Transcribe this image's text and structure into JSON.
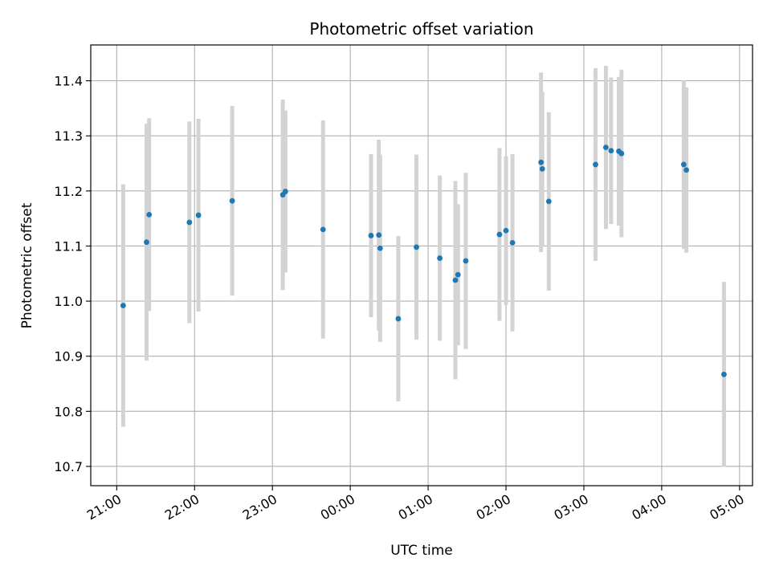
{
  "chart_data": {
    "type": "scatter",
    "title": "Photometric offset variation",
    "xlabel": "UTC time",
    "ylabel": "Photometric offset",
    "grid": true,
    "error_bar_color": "#d3d3d3",
    "point_color": "#1f77b4",
    "xlim": [
      "20:40",
      "05:10"
    ],
    "ylim": [
      10.665,
      11.465
    ],
    "x_ticks": [
      "21:00",
      "22:00",
      "23:00",
      "00:00",
      "01:00",
      "02:00",
      "03:00",
      "04:00",
      "05:00"
    ],
    "y_ticks": [
      "10.7",
      "10.8",
      "10.9",
      "11.0",
      "11.1",
      "11.2",
      "11.3",
      "11.4"
    ],
    "points": [
      {
        "x": "21:05",
        "y": 10.992,
        "err": 0.22
      },
      {
        "x": "21:23",
        "y": 11.107,
        "err": 0.215
      },
      {
        "x": "21:25",
        "y": 11.157,
        "err": 0.175
      },
      {
        "x": "21:56",
        "y": 11.143,
        "err": 0.183
      },
      {
        "x": "22:03",
        "y": 11.156,
        "err": 0.175
      },
      {
        "x": "22:29",
        "y": 11.182,
        "err": 0.172
      },
      {
        "x": "23:08",
        "y": 11.193,
        "err": 0.173
      },
      {
        "x": "23:10",
        "y": 11.199,
        "err": 0.147
      },
      {
        "x": "23:39",
        "y": 11.13,
        "err": 0.198
      },
      {
        "x": "00:16",
        "y": 11.119,
        "err": 0.148
      },
      {
        "x": "00:22",
        "y": 11.12,
        "err": 0.173
      },
      {
        "x": "00:23",
        "y": 11.096,
        "err": 0.17
      },
      {
        "x": "00:37",
        "y": 10.968,
        "err": 0.15
      },
      {
        "x": "00:51",
        "y": 11.098,
        "err": 0.168
      },
      {
        "x": "01:09",
        "y": 11.078,
        "err": 0.15
      },
      {
        "x": "01:21",
        "y": 11.038,
        "err": 0.18
      },
      {
        "x": "01:23",
        "y": 11.048,
        "err": 0.128
      },
      {
        "x": "01:29",
        "y": 11.073,
        "err": 0.16
      },
      {
        "x": "01:55",
        "y": 11.121,
        "err": 0.157
      },
      {
        "x": "02:00",
        "y": 11.128,
        "err": 0.135
      },
      {
        "x": "02:05",
        "y": 11.106,
        "err": 0.161
      },
      {
        "x": "02:27",
        "y": 11.252,
        "err": 0.163
      },
      {
        "x": "02:28",
        "y": 11.24,
        "err": 0.14
      },
      {
        "x": "02:33",
        "y": 11.181,
        "err": 0.162
      },
      {
        "x": "03:09",
        "y": 11.248,
        "err": 0.175
      },
      {
        "x": "03:17",
        "y": 11.279,
        "err": 0.148
      },
      {
        "x": "03:21",
        "y": 11.273,
        "err": 0.133
      },
      {
        "x": "03:27",
        "y": 11.272,
        "err": 0.135
      },
      {
        "x": "03:29",
        "y": 11.268,
        "err": 0.152
      },
      {
        "x": "04:17",
        "y": 11.248,
        "err": 0.153
      },
      {
        "x": "04:19",
        "y": 11.238,
        "err": 0.15
      },
      {
        "x": "04:48",
        "y": 10.867,
        "err": 0.168
      }
    ]
  }
}
